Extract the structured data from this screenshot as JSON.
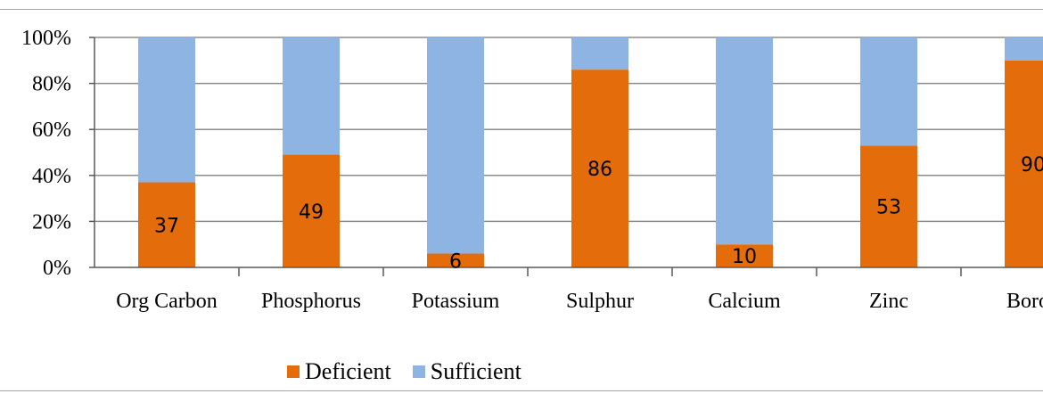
{
  "chart_data": {
    "type": "bar",
    "stacked": "percent",
    "categories": [
      "Org Carbon",
      "Phosphorus",
      "Potassium",
      "Sulphur",
      "Calcium",
      "Zinc",
      "Boron"
    ],
    "series": [
      {
        "name": "Deficient",
        "values": [
          37,
          49,
          6,
          86,
          10,
          53,
          90
        ],
        "color": "#e46c0a"
      },
      {
        "name": "Sufficient",
        "values": [
          63,
          51,
          94,
          14,
          90,
          47,
          10
        ],
        "color": "#8eb4e3"
      }
    ],
    "y_ticks": [
      "0%",
      "20%",
      "40%",
      "60%",
      "80%",
      "100%"
    ],
    "ylim": [
      0,
      100
    ],
    "grid": true,
    "legend": "bottom"
  }
}
